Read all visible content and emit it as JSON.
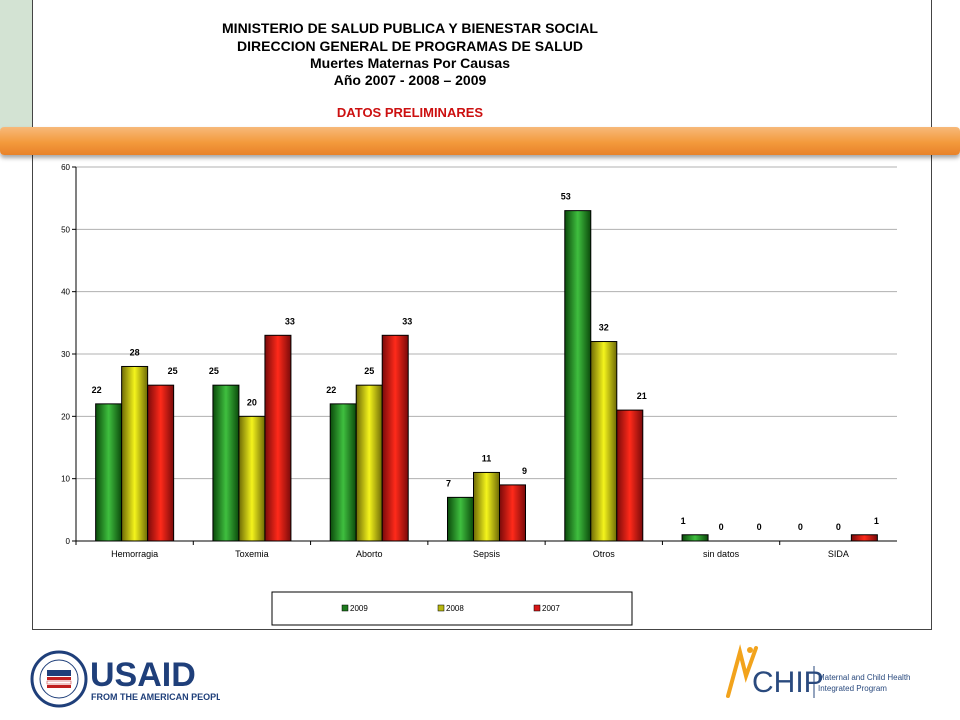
{
  "header": {
    "title_lines": [
      "MINISTERIO DE SALUD PUBLICA Y BIENESTAR SOCIAL",
      "DIRECCION GENERAL DE PROGRAMAS DE SALUD",
      "Muertes Maternas Por Causas",
      "Año 2007 - 2008 – 2009"
    ],
    "subtitle": "DATOS PRELIMINARES"
  },
  "chart_data": {
    "type": "bar",
    "categories": [
      "Hemorragia",
      "Toxemia",
      "Aborto",
      "Sepsis",
      "Otros",
      "sin datos",
      "SIDA"
    ],
    "series": [
      {
        "name": "2009",
        "values": [
          22,
          25,
          22,
          7,
          53,
          1,
          0
        ],
        "color": "#1e7a1e"
      },
      {
        "name": "2008",
        "values": [
          28,
          20,
          25,
          11,
          32,
          0,
          0
        ],
        "color": "#b8b810"
      },
      {
        "name": "2007",
        "values": [
          25,
          33,
          33,
          9,
          21,
          0,
          1
        ],
        "color": "#d81818"
      }
    ],
    "ylim": [
      0,
      60
    ],
    "yticks": [
      0,
      10,
      20,
      30,
      40,
      50,
      60
    ],
    "grid": true,
    "legend_position": "bottom",
    "xlabel": "",
    "ylabel": ""
  },
  "logos": {
    "usaid_text": "USAID",
    "usaid_tagline": "FROM THE AMERICAN PEOPLE",
    "usaid_seal_text": "UNITED STATES AGENCY · INTERNATIONAL DEVELOPMENT",
    "chip_text": "CHIP",
    "chip_tagline_1": "Maternal and Child Health",
    "chip_tagline_2": "Integrated Program"
  }
}
